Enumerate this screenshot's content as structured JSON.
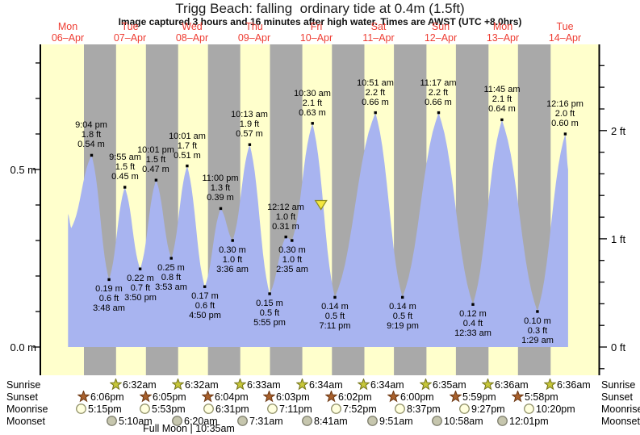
{
  "title": "Trigg Beach: falling  ordinary tide at 0.4m (1.5ft)",
  "subtitle": "Image captured 3 hours and 16 minutes after high water. Times are AWST (UTC +8.0hrs)",
  "colors": {
    "day_band": "#FFFFCC",
    "night_band": "#A9A9A9",
    "tide_fill": "#A8B4F0",
    "date_red": "#EE3C32",
    "axis_black": "#000000",
    "marker_yellow": "#F4E83F",
    "marker_outline": "#8B8B1E",
    "sunrise_star_fill": "#C7C73A",
    "sunrise_star_stroke": "#77771C",
    "sunset_star_fill": "#A8602C",
    "sunset_star_stroke": "#6F3A16",
    "moonrise_fill": "#FFFFDE",
    "moonrise_stroke": "#8E8E66",
    "moonset_fill": "#C6C6AE",
    "moonset_stroke": "#7D7D6D"
  },
  "chart_data": {
    "type": "area",
    "title": "Trigg Beach: falling  ordinary tide at 0.4m (1.5ft)",
    "x_days": [
      {
        "dow": "Mon",
        "date": "06–Apr"
      },
      {
        "dow": "Tue",
        "date": "07–Apr"
      },
      {
        "dow": "Wed",
        "date": "08–Apr"
      },
      {
        "dow": "Thu",
        "date": "09–Apr"
      },
      {
        "dow": "Fri",
        "date": "10–Apr"
      },
      {
        "dow": "Sat",
        "date": "11–Apr"
      },
      {
        "dow": "Sun",
        "date": "12–Apr"
      },
      {
        "dow": "Mon",
        "date": "13–Apr"
      },
      {
        "dow": "Tue",
        "date": "14–Apr"
      }
    ],
    "y_axis_left": {
      "unit": "m",
      "labels": [
        "0.0 m",
        "0.5 m"
      ],
      "label_values_m": [
        0.0,
        0.5
      ],
      "tick_step_m": 0.1
    },
    "y_axis_right": {
      "unit": "ft",
      "labels": [
        "0 ft",
        "1 ft",
        "2 ft"
      ],
      "label_values_ft": [
        0,
        1,
        2
      ],
      "tick_step_ft": 0.2
    },
    "tide_extremes": [
      {
        "day": 0,
        "time": "9:04 pm",
        "ft": "1.8 ft",
        "m": "0.54 m",
        "kind": "high"
      },
      {
        "day": 1,
        "time": "3:48 am",
        "ft": "0.6 ft",
        "m": "0.19 m",
        "kind": "low"
      },
      {
        "day": 1,
        "time": "9:55 am",
        "ft": "1.5 ft",
        "m": "0.45 m",
        "kind": "high"
      },
      {
        "day": 1,
        "time": "3:50 pm",
        "ft": "0.7 ft",
        "m": "0.22 m",
        "kind": "low"
      },
      {
        "day": 1,
        "time": "10:01 pm",
        "ft": "1.5 ft",
        "m": "0.47 m",
        "kind": "high"
      },
      {
        "day": 2,
        "time": "3:53 am",
        "ft": "0.8 ft",
        "m": "0.25 m",
        "kind": "low"
      },
      {
        "day": 2,
        "time": "10:01 am",
        "ft": "1.7 ft",
        "m": "0.51 m",
        "kind": "high"
      },
      {
        "day": 2,
        "time": "4:50 pm",
        "ft": "0.6 ft",
        "m": "0.17 m",
        "kind": "low"
      },
      {
        "day": 2,
        "time": "11:00 pm",
        "ft": "1.3 ft",
        "m": "0.39 m",
        "kind": "high"
      },
      {
        "day": 3,
        "time": "3:36 am",
        "ft": "1.0 ft",
        "m": "0.30 m",
        "kind": "low"
      },
      {
        "day": 3,
        "time": "10:13 am",
        "ft": "1.9 ft",
        "m": "0.57 m",
        "kind": "high"
      },
      {
        "day": 3,
        "time": "5:55 pm",
        "ft": "0.5 ft",
        "m": "0.15 m",
        "kind": "low"
      },
      {
        "day": 4,
        "time": "12:12 am",
        "ft": "1.0 ft",
        "m": "0.31 m",
        "kind": "high"
      },
      {
        "day": 4,
        "time": "2:35 am",
        "ft": "1.0 ft",
        "m": "0.30 m",
        "kind": "low"
      },
      {
        "day": 4,
        "time": "10:30 am",
        "ft": "2.1 ft",
        "m": "0.63 m",
        "kind": "high"
      },
      {
        "day": 4,
        "time": "7:11 pm",
        "ft": "0.5 ft",
        "m": "0.14 m",
        "kind": "low"
      },
      {
        "day": 5,
        "time": "10:51 am",
        "ft": "2.2 ft",
        "m": "0.66 m",
        "kind": "high"
      },
      {
        "day": 5,
        "time": "9:19 pm",
        "ft": "0.5 ft",
        "m": "0.14 m",
        "kind": "low"
      },
      {
        "day": 6,
        "time": "11:17 am",
        "ft": "2.2 ft",
        "m": "0.66 m",
        "kind": "high"
      },
      {
        "day": 7,
        "time": "12:33 am",
        "ft": "0.4 ft",
        "m": "0.12 m",
        "kind": "low"
      },
      {
        "day": 7,
        "time": "11:45 am",
        "ft": "2.1 ft",
        "m": "0.64 m",
        "kind": "high"
      },
      {
        "day": 8,
        "time": "1:29 am",
        "ft": "0.3 ft",
        "m": "0.10 m",
        "kind": "low"
      },
      {
        "day": 8,
        "time": "12:16 pm",
        "ft": "2.0 ft",
        "m": "0.60 m",
        "kind": "high"
      }
    ],
    "current_tide_marker": {
      "level_m": 0.4,
      "state": "falling",
      "after_high": "3 hours and 16 minutes"
    },
    "sun_moon_rows": [
      {
        "label": "Sunrise",
        "icon": "sunrise-star-icon",
        "events": [
          {
            "day": 1,
            "time": "6:32am"
          },
          {
            "day": 2,
            "time": "6:32am"
          },
          {
            "day": 3,
            "time": "6:33am"
          },
          {
            "day": 4,
            "time": "6:34am"
          },
          {
            "day": 5,
            "time": "6:34am"
          },
          {
            "day": 6,
            "time": "6:35am"
          },
          {
            "day": 7,
            "time": "6:36am"
          },
          {
            "day": 8,
            "time": "6:36am"
          }
        ]
      },
      {
        "label": "Sunset",
        "icon": "sunset-star-icon",
        "events": [
          {
            "day": 0,
            "time": "6:06pm"
          },
          {
            "day": 1,
            "time": "6:05pm"
          },
          {
            "day": 2,
            "time": "6:04pm"
          },
          {
            "day": 3,
            "time": "6:03pm"
          },
          {
            "day": 4,
            "time": "6:02pm"
          },
          {
            "day": 5,
            "time": "6:00pm"
          },
          {
            "day": 6,
            "time": "5:59pm"
          },
          {
            "day": 7,
            "time": "5:58pm"
          }
        ]
      },
      {
        "label": "Moonrise",
        "icon": "moonrise-circle-icon",
        "events": [
          {
            "day": 0,
            "time": "5:15pm"
          },
          {
            "day": 1,
            "time": "5:53pm"
          },
          {
            "day": 2,
            "time": "6:31pm"
          },
          {
            "day": 3,
            "time": "7:11pm"
          },
          {
            "day": 4,
            "time": "7:52pm"
          },
          {
            "day": 5,
            "time": "8:37pm"
          },
          {
            "day": 6,
            "time": "9:27pm"
          },
          {
            "day": 7,
            "time": "10:20pm"
          }
        ]
      },
      {
        "label": "Moonset",
        "icon": "moonset-circle-icon",
        "events": [
          {
            "day": 1,
            "time": "5:10am"
          },
          {
            "day": 2,
            "time": "6:20am"
          },
          {
            "day": 3,
            "time": "7:31am"
          },
          {
            "day": 4,
            "time": "8:41am"
          },
          {
            "day": 5,
            "time": "9:51am"
          },
          {
            "day": 6,
            "time": "10:58am"
          },
          {
            "day": 7,
            "time": "12:01pm"
          }
        ]
      }
    ],
    "moon_phase": {
      "text": "Full Moon | 10:35am",
      "day": 2,
      "time": "10:35am"
    }
  }
}
